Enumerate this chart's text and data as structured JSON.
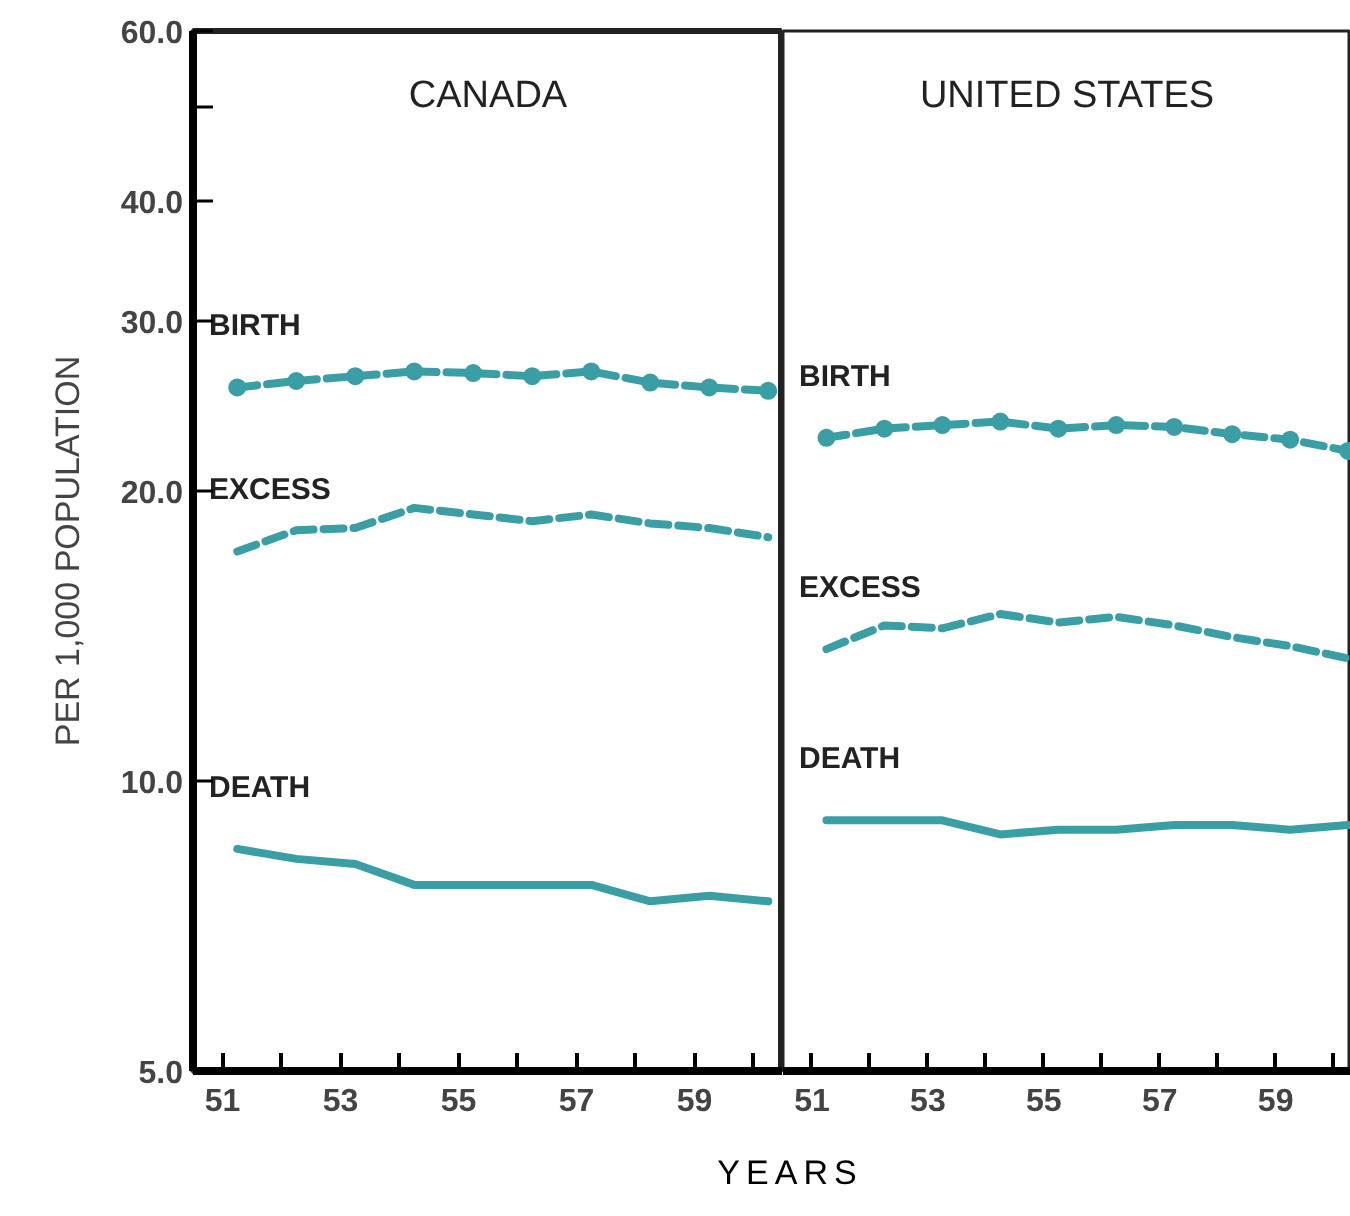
{
  "chart_data": [
    {
      "type": "line",
      "title": "CANADA",
      "xlabel": "YEARS",
      "ylabel": "PER 1,000 POPULATION",
      "log": true,
      "x": [
        51.25,
        52.25,
        53.25,
        54.25,
        55.25,
        56.25,
        57.25,
        58.25,
        59.25,
        60.25
      ],
      "xlim": [
        50.5,
        60.5
      ],
      "ylim": [
        5,
        60
      ],
      "xticks": [
        51,
        {
          "value": 52,
          "label": null
        },
        53,
        {
          "value": 54,
          "label": null
        },
        55,
        {
          "value": 56,
          "label": null
        },
        57,
        {
          "value": 58,
          "label": null
        },
        59,
        {
          "value": 60,
          "label": null
        }
      ],
      "yticks": [
        {
          "value": 5,
          "label": "5.0"
        },
        {
          "value": 10,
          "label": "10.0"
        },
        {
          "value": 20,
          "label": "20.0"
        },
        {
          "value": 30,
          "label": "30.0"
        },
        {
          "value": 40,
          "label": "40.0"
        },
        {
          "value": 50,
          "label": null
        },
        {
          "value": 60,
          "label": "60.0"
        }
      ],
      "series": [
        {
          "name": "BIRTH",
          "color": "#3a9ea5",
          "marker": "circle",
          "line_style": "dashed",
          "values": [
            25.6,
            26.0,
            26.3,
            26.6,
            26.5,
            26.3,
            26.6,
            25.9,
            25.6,
            25.4
          ]
        },
        {
          "name": "EXCESS",
          "color": "#3a9ea5",
          "line_style": "dashed",
          "values": [
            17.3,
            18.2,
            18.3,
            19.2,
            18.9,
            18.6,
            18.9,
            18.5,
            18.3,
            17.9
          ]
        },
        {
          "name": "DEATH",
          "color": "#3a9ea5",
          "line_style": "solid",
          "values": [
            8.5,
            8.3,
            8.2,
            7.8,
            7.8,
            7.8,
            7.8,
            7.5,
            7.6,
            7.5
          ]
        }
      ]
    },
    {
      "type": "line",
      "title": "UNITED STATES",
      "log": true,
      "tick_labels": "x",
      "x": [
        51.25,
        52.25,
        53.25,
        54.25,
        55.25,
        56.25,
        57.25,
        58.25,
        59.25,
        60.25
      ],
      "xlim": [
        50.5,
        60.3
      ],
      "ylim": [
        5,
        60
      ],
      "xticks": [
        51,
        {
          "value": 52,
          "label": null
        },
        53,
        {
          "value": 54,
          "label": null
        },
        55,
        {
          "value": 56,
          "label": null
        },
        57,
        {
          "value": 58,
          "label": null
        },
        59,
        {
          "value": 60,
          "label": null
        }
      ],
      "series": [
        {
          "name": "BIRTH",
          "color": "#3a9ea5",
          "marker": "circle",
          "line_style": "dashed",
          "values": [
            22.7,
            23.2,
            23.4,
            23.6,
            23.2,
            23.4,
            23.3,
            22.9,
            22.6,
            22.0
          ]
        },
        {
          "name": "EXCESS",
          "color": "#3a9ea5",
          "line_style": "dashed",
          "values": [
            13.7,
            14.5,
            14.4,
            14.9,
            14.6,
            14.8,
            14.5,
            14.1,
            13.8,
            13.4
          ]
        },
        {
          "name": "DEATH",
          "color": "#3a9ea5",
          "line_style": "solid",
          "values": [
            9.1,
            9.1,
            9.1,
            8.8,
            8.9,
            8.9,
            9.0,
            9.0,
            8.9,
            9.0
          ]
        }
      ]
    }
  ]
}
